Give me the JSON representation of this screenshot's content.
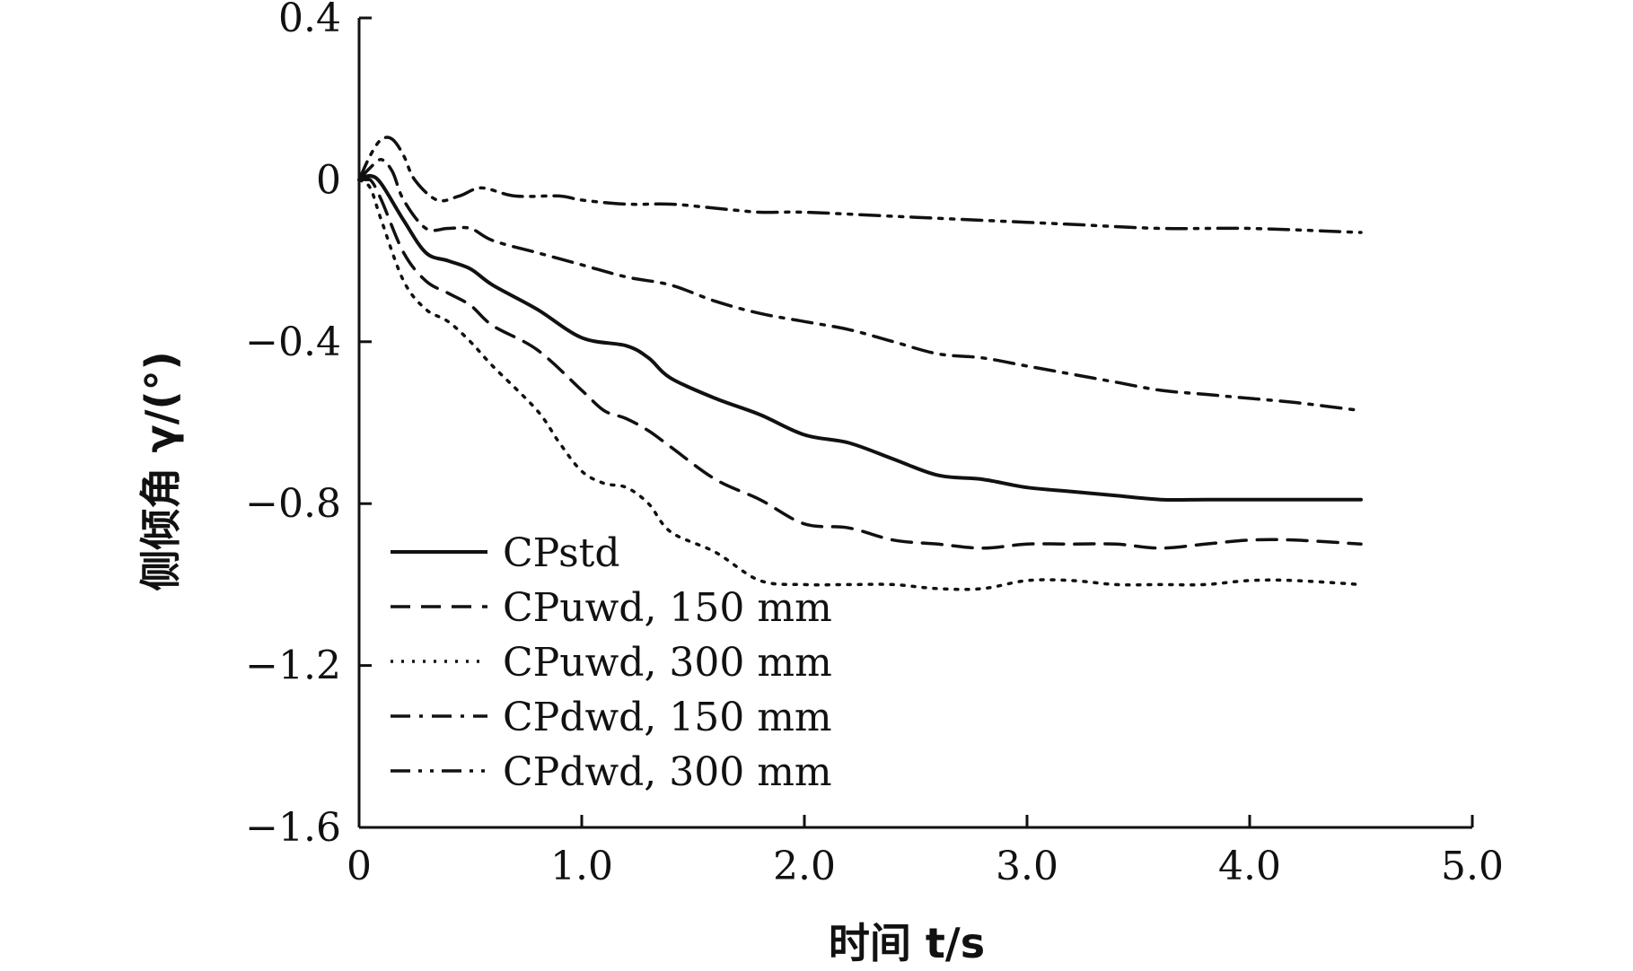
{
  "chart_data": {
    "type": "line",
    "xlabel": "时间 t/s",
    "ylabel": "侧倾角 γ/(°)",
    "xlim": [
      0,
      5.0
    ],
    "ylim": [
      -1.6,
      0.4
    ],
    "x_ticks": [
      "0",
      "1.0",
      "2.0",
      "3.0",
      "4.0",
      "5.0"
    ],
    "y_ticks": [
      "0.4",
      "0",
      "−0.4",
      "−0.8",
      "−1.2",
      "−1.6"
    ],
    "y_tick_values": [
      0.4,
      0,
      -0.4,
      -0.8,
      -1.2,
      -1.6
    ],
    "x_tick_values": [
      0,
      1,
      2,
      3,
      4,
      5
    ],
    "grid": false,
    "legend_position": "bottom-left",
    "series": [
      {
        "name": "CPstd",
        "dash": "solid",
        "points": [
          [
            0,
            0
          ],
          [
            0.05,
            0.01
          ],
          [
            0.1,
            -0.01
          ],
          [
            0.2,
            -0.1
          ],
          [
            0.3,
            -0.18
          ],
          [
            0.4,
            -0.2
          ],
          [
            0.5,
            -0.22
          ],
          [
            0.6,
            -0.26
          ],
          [
            0.8,
            -0.32
          ],
          [
            1.0,
            -0.39
          ],
          [
            1.2,
            -0.41
          ],
          [
            1.3,
            -0.44
          ],
          [
            1.4,
            -0.49
          ],
          [
            1.6,
            -0.54
          ],
          [
            1.8,
            -0.58
          ],
          [
            2.0,
            -0.63
          ],
          [
            2.2,
            -0.65
          ],
          [
            2.4,
            -0.69
          ],
          [
            2.6,
            -0.73
          ],
          [
            2.8,
            -0.74
          ],
          [
            3.0,
            -0.76
          ],
          [
            3.2,
            -0.77
          ],
          [
            3.4,
            -0.78
          ],
          [
            3.6,
            -0.79
          ],
          [
            3.8,
            -0.79
          ],
          [
            4.0,
            -0.79
          ],
          [
            4.2,
            -0.79
          ],
          [
            4.5,
            -0.79
          ]
        ]
      },
      {
        "name": "CPuwd, 150 mm",
        "dash": "dashed",
        "points": [
          [
            0,
            0
          ],
          [
            0.05,
            0
          ],
          [
            0.1,
            -0.05
          ],
          [
            0.2,
            -0.18
          ],
          [
            0.3,
            -0.25
          ],
          [
            0.4,
            -0.28
          ],
          [
            0.5,
            -0.31
          ],
          [
            0.6,
            -0.36
          ],
          [
            0.8,
            -0.42
          ],
          [
            1.0,
            -0.52
          ],
          [
            1.1,
            -0.57
          ],
          [
            1.2,
            -0.59
          ],
          [
            1.3,
            -0.62
          ],
          [
            1.4,
            -0.66
          ],
          [
            1.6,
            -0.74
          ],
          [
            1.8,
            -0.79
          ],
          [
            2.0,
            -0.85
          ],
          [
            2.2,
            -0.86
          ],
          [
            2.4,
            -0.89
          ],
          [
            2.6,
            -0.9
          ],
          [
            2.8,
            -0.91
          ],
          [
            3.0,
            -0.9
          ],
          [
            3.2,
            -0.9
          ],
          [
            3.4,
            -0.9
          ],
          [
            3.6,
            -0.91
          ],
          [
            3.8,
            -0.9
          ],
          [
            4.0,
            -0.89
          ],
          [
            4.2,
            -0.89
          ],
          [
            4.5,
            -0.9
          ]
        ]
      },
      {
        "name": "CPuwd, 300 mm",
        "dash": "dotted",
        "points": [
          [
            0,
            0
          ],
          [
            0.05,
            -0.02
          ],
          [
            0.1,
            -0.1
          ],
          [
            0.2,
            -0.25
          ],
          [
            0.3,
            -0.32
          ],
          [
            0.4,
            -0.35
          ],
          [
            0.5,
            -0.4
          ],
          [
            0.6,
            -0.46
          ],
          [
            0.8,
            -0.57
          ],
          [
            0.9,
            -0.65
          ],
          [
            1.0,
            -0.72
          ],
          [
            1.1,
            -0.75
          ],
          [
            1.2,
            -0.76
          ],
          [
            1.3,
            -0.8
          ],
          [
            1.4,
            -0.87
          ],
          [
            1.6,
            -0.92
          ],
          [
            1.8,
            -0.99
          ],
          [
            2.0,
            -1.0
          ],
          [
            2.2,
            -1.0
          ],
          [
            2.4,
            -1.0
          ],
          [
            2.6,
            -1.01
          ],
          [
            2.8,
            -1.01
          ],
          [
            3.0,
            -0.99
          ],
          [
            3.2,
            -0.99
          ],
          [
            3.4,
            -1.0
          ],
          [
            3.6,
            -1.0
          ],
          [
            3.8,
            -1.0
          ],
          [
            4.0,
            -0.99
          ],
          [
            4.2,
            -0.99
          ],
          [
            4.5,
            -1.0
          ]
        ]
      },
      {
        "name": "CPdwd, 150 mm",
        "dash": "dashdot",
        "points": [
          [
            0,
            0
          ],
          [
            0.05,
            0.03
          ],
          [
            0.1,
            0.05
          ],
          [
            0.15,
            0.02
          ],
          [
            0.2,
            -0.05
          ],
          [
            0.3,
            -0.12
          ],
          [
            0.4,
            -0.12
          ],
          [
            0.5,
            -0.12
          ],
          [
            0.6,
            -0.15
          ],
          [
            0.8,
            -0.18
          ],
          [
            1.0,
            -0.21
          ],
          [
            1.2,
            -0.24
          ],
          [
            1.4,
            -0.26
          ],
          [
            1.6,
            -0.3
          ],
          [
            1.8,
            -0.33
          ],
          [
            2.0,
            -0.35
          ],
          [
            2.2,
            -0.37
          ],
          [
            2.4,
            -0.4
          ],
          [
            2.6,
            -0.43
          ],
          [
            2.8,
            -0.44
          ],
          [
            3.0,
            -0.46
          ],
          [
            3.2,
            -0.48
          ],
          [
            3.4,
            -0.5
          ],
          [
            3.6,
            -0.52
          ],
          [
            3.8,
            -0.53
          ],
          [
            4.0,
            -0.54
          ],
          [
            4.2,
            -0.55
          ],
          [
            4.5,
            -0.57
          ]
        ]
      },
      {
        "name": "CPdwd, 300 mm",
        "dash": "dashdotdot",
        "points": [
          [
            0,
            0
          ],
          [
            0.05,
            0.06
          ],
          [
            0.1,
            0.1
          ],
          [
            0.15,
            0.1
          ],
          [
            0.2,
            0.06
          ],
          [
            0.25,
            0.0
          ],
          [
            0.35,
            -0.05
          ],
          [
            0.45,
            -0.04
          ],
          [
            0.55,
            -0.02
          ],
          [
            0.7,
            -0.04
          ],
          [
            0.9,
            -0.04
          ],
          [
            1.0,
            -0.05
          ],
          [
            1.2,
            -0.06
          ],
          [
            1.4,
            -0.06
          ],
          [
            1.6,
            -0.07
          ],
          [
            1.8,
            -0.08
          ],
          [
            2.0,
            -0.08
          ],
          [
            2.4,
            -0.09
          ],
          [
            2.8,
            -0.1
          ],
          [
            3.2,
            -0.11
          ],
          [
            3.6,
            -0.12
          ],
          [
            4.0,
            -0.12
          ],
          [
            4.5,
            -0.13
          ]
        ]
      }
    ]
  }
}
